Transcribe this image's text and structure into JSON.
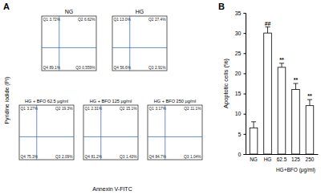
{
  "chart_data": [
    {
      "type": "quadrant",
      "panel_label": "A",
      "title": "NG",
      "y_label": "Pyridine iodide (PI)",
      "x_label": "Annexin V-FITC",
      "quadrants": [
        "Q1",
        "Q2",
        "Q3",
        "Q4"
      ],
      "values": [
        3.72,
        6.62,
        0.559,
        89.1
      ],
      "value_labels": [
        "3.72%",
        "6.62%",
        "0.559%",
        "89.1%"
      ],
      "tick_labels": false
    },
    {
      "type": "quadrant",
      "title": "HG",
      "quadrants": [
        "Q1",
        "Q2",
        "Q3",
        "Q4"
      ],
      "values": [
        13.0,
        27.4,
        2.91,
        56.6
      ],
      "value_labels": [
        "13.0%",
        "27.4%",
        "2.91%",
        "56.6%"
      ],
      "tick_labels": false
    },
    {
      "type": "quadrant",
      "title": "HG + BFO 62.5 μg/ml",
      "quadrants": [
        "Q1",
        "Q2",
        "Q3",
        "Q4"
      ],
      "values": [
        3.27,
        19.3,
        2.09,
        75.3
      ],
      "value_labels": [
        "3.27%",
        "19.3%",
        "2.09%",
        "75.3%"
      ],
      "tick_labels": false
    },
    {
      "type": "quadrant",
      "title": "HG + BFO 125 μg/ml",
      "quadrants": [
        "Q1",
        "Q2",
        "Q3",
        "Q4"
      ],
      "values": [
        2.31,
        15.1,
        1.43,
        81.2
      ],
      "value_labels": [
        "2.31%",
        "15.1%",
        "1.43%",
        "81.2%"
      ],
      "tick_labels": false
    },
    {
      "type": "quadrant",
      "title": "HG + BFO 250 μg/ml",
      "quadrants": [
        "Q1",
        "Q2",
        "Q3",
        "Q4"
      ],
      "values": [
        3.17,
        11.1,
        1.04,
        84.7
      ],
      "value_labels": [
        "3.17%",
        "11.1%",
        "1.04%",
        "84.7%"
      ],
      "tick_labels": false
    },
    {
      "type": "bar",
      "panel_label": "B",
      "y_label": "Apoptotic cells (%)",
      "x_label": "HG+BFO (μg/ml)",
      "categories": [
        "NG",
        "HG",
        "62.5",
        "125",
        "250"
      ],
      "values": [
        6.5,
        30.0,
        21.5,
        16.0,
        12.0
      ],
      "errors": [
        1.5,
        1.5,
        1.0,
        1.5,
        1.5
      ],
      "annotations": [
        null,
        "##",
        "**",
        "**",
        "**"
      ],
      "color": "#ffffff",
      "ylim": [
        0,
        35
      ],
      "yticks": [
        0,
        5,
        10,
        15,
        20,
        25,
        30,
        35
      ]
    }
  ]
}
